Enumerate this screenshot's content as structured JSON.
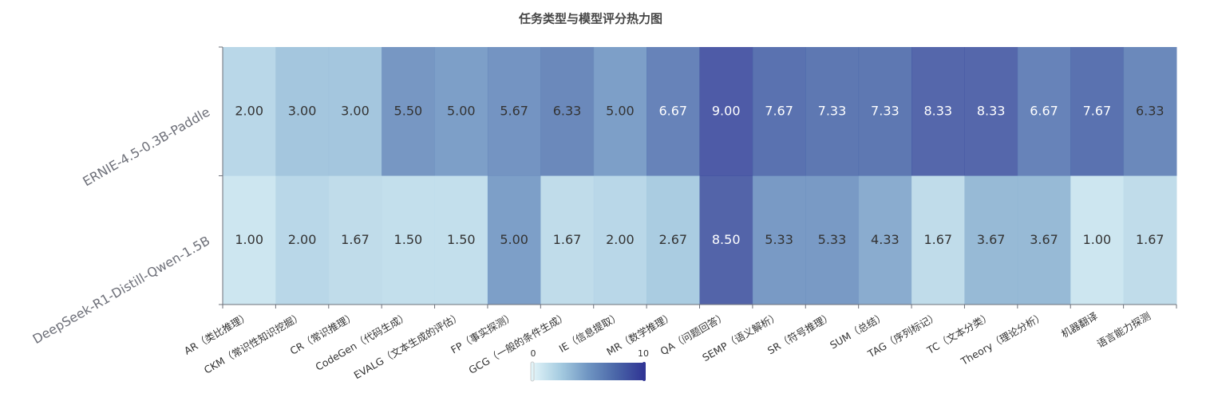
{
  "chart_data": {
    "type": "heatmap",
    "title": "任务类型与模型评分热力图",
    "categories": [
      "AR（类比推理）",
      "CKM（常识性知识挖掘）",
      "CR（常识推理）",
      "CodeGen（代码生成）",
      "EVALG（文本生成的评估）",
      "FP（事实探测）",
      "GCG（一般的条件生成）",
      "IE（信息提取）",
      "MR（数学推理）",
      "QA（问题回答）",
      "SEMP（语义解析）",
      "SR（符号推理）",
      "SUM（总结）",
      "TAG（序列标记）",
      "TC（文本分类）",
      "Theory（理论分析）",
      "机器翻译",
      "语言能力探测"
    ],
    "y_categories": [
      "ERNIE-4.5-0.3B-Paddle",
      "DeepSeek-R1-Distill-Qwen-1.5B"
    ],
    "values": [
      [
        2,
        3,
        3,
        5.5,
        5,
        5.67,
        6.33,
        5,
        6.67,
        9,
        7.67,
        7.33,
        7.33,
        8.33,
        8.33,
        6.67,
        7.67,
        6.33
      ],
      [
        1,
        2,
        1.67,
        1.5,
        1.5,
        5,
        1.67,
        2,
        2.67,
        8.5,
        5.33,
        5.33,
        4.33,
        1.67,
        3.67,
        3.67,
        1,
        1.67
      ]
    ],
    "value_labels": [
      [
        "2.00",
        "3.00",
        "3.00",
        "5.50",
        "5.00",
        "5.67",
        "6.33",
        "5.00",
        "6.67",
        "9.00",
        "7.67",
        "7.33",
        "7.33",
        "8.33",
        "8.33",
        "6.67",
        "7.67",
        "6.33"
      ],
      [
        "1.00",
        "2.00",
        "1.67",
        "1.50",
        "1.50",
        "5.00",
        "1.67",
        "2.00",
        "2.67",
        "8.50",
        "5.33",
        "5.33",
        "4.33",
        "1.67",
        "3.67",
        "3.67",
        "1.00",
        "1.67"
      ]
    ],
    "vlim": [
      0,
      10
    ],
    "colors": [
      "#e0f3f8",
      "#a5cbe0",
      "#6f95c2",
      "#4a66a8",
      "#313695"
    ]
  }
}
